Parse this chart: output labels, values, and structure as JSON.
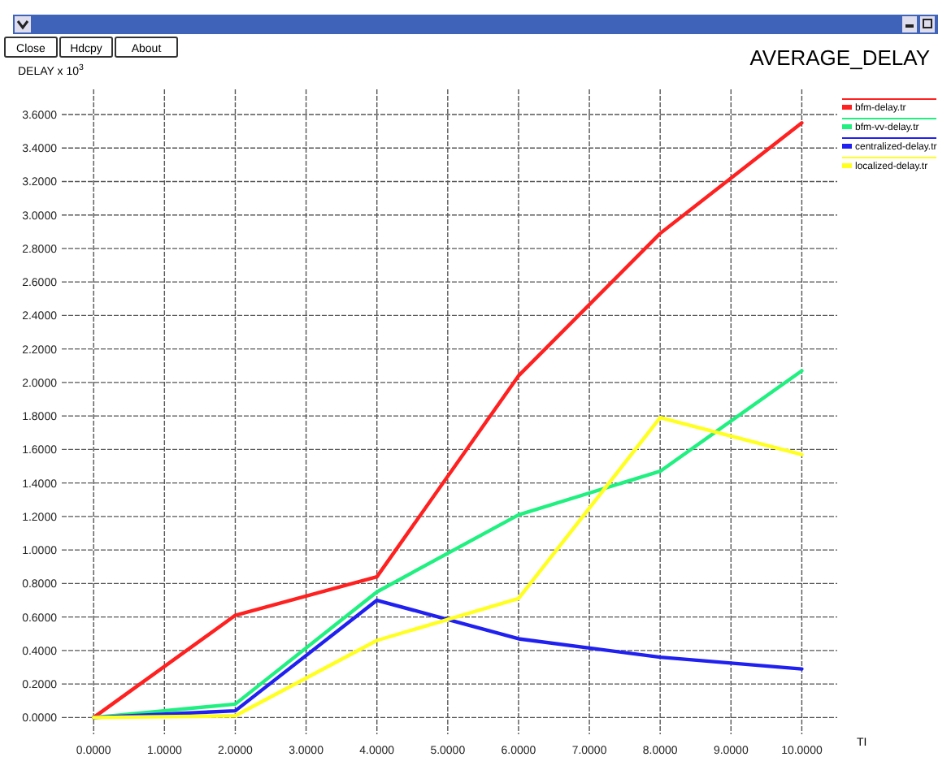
{
  "chart_data": {
    "type": "line",
    "title": "AVERAGE_DELAY",
    "ylabel": "DELAY x 10$^{3}$",
    "xlabel": "TI",
    "annotations": [
      "Close",
      "Hdcpy",
      "About"
    ],
    "x": [
      0,
      2,
      4,
      6,
      8,
      10
    ],
    "series": [
      {
        "name": "bfm-delay.tr",
        "color": "#ff2020",
        "values": [
          0,
          0.61,
          0.84,
          2.04,
          2.89,
          3.55
        ]
      },
      {
        "name": "bfm-vv-delay.tr",
        "color": "#20f080",
        "values": [
          0,
          0.08,
          0.75,
          1.21,
          1.47,
          2.07
        ]
      },
      {
        "name": "centralized-delay.tr",
        "color": "#2020f0",
        "values": [
          0,
          0.04,
          0.7,
          0.47,
          0.36,
          0.29
        ]
      },
      {
        "name": "localized-delay.tr",
        "color": "#ffff20",
        "values": [
          0,
          0.01,
          0.46,
          0.71,
          1.79,
          1.57
        ]
      }
    ],
    "xlim": [
      -0.45,
      10.5
    ],
    "ylim": [
      -0.1,
      3.75
    ],
    "xticks": [
      {
        "value": 0,
        "label": "0.0000"
      },
      {
        "value": 1,
        "label": "1.0000"
      },
      {
        "value": 2,
        "label": "2.0000"
      },
      {
        "value": 3,
        "label": "3.0000"
      },
      {
        "value": 4,
        "label": "4.0000"
      },
      {
        "value": 5,
        "label": "5.0000"
      },
      {
        "value": 6,
        "label": "6.0000"
      },
      {
        "value": 7,
        "label": "7.0000"
      },
      {
        "value": 8,
        "label": "8.0000"
      },
      {
        "value": 9,
        "label": "9.0000"
      },
      {
        "value": 10,
        "label": "10.0000"
      }
    ],
    "yticks": [
      {
        "value": 0,
        "label": "0.0000"
      },
      {
        "value": 0.2,
        "label": "0.2000"
      },
      {
        "value": 0.4,
        "label": "0.4000"
      },
      {
        "value": 0.6,
        "label": "0.6000"
      },
      {
        "value": 0.8,
        "label": "0.8000"
      },
      {
        "value": 1,
        "label": "1.0000"
      },
      {
        "value": 1.2,
        "label": "1.2000"
      },
      {
        "value": 1.4,
        "label": "1.4000"
      },
      {
        "value": 1.6,
        "label": "1.6000"
      },
      {
        "value": 1.8,
        "label": "1.8000"
      },
      {
        "value": 2,
        "label": "2.0000"
      },
      {
        "value": 2.2,
        "label": "2.2000"
      },
      {
        "value": 2.4,
        "label": "2.4000"
      },
      {
        "value": 2.6,
        "label": "2.6000"
      },
      {
        "value": 2.8,
        "label": "2.8000"
      },
      {
        "value": 3,
        "label": "3.0000"
      },
      {
        "value": 3.2,
        "label": "3.2000"
      },
      {
        "value": 3.4,
        "label": "3.4000"
      },
      {
        "value": 3.6,
        "label": "3.6000"
      }
    ],
    "grid": true,
    "legend": "right",
    "marker": "none",
    "line_style": "solid"
  }
}
